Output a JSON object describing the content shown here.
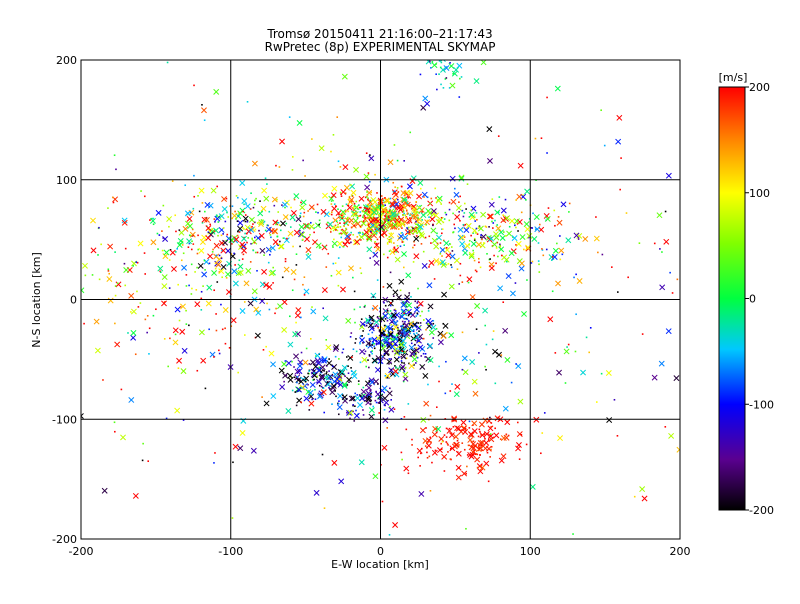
{
  "chart_data": {
    "type": "scatter",
    "title": "Tromsø 20150411 21:16:00–21:17:43",
    "subtitle": "RwPretec (8p) EXPERIMENTAL SKYMAP",
    "xlabel": "E-W location [km]",
    "ylabel": "N-S location [km]",
    "xlim": [
      -200,
      200
    ],
    "ylim": [
      -200,
      200
    ],
    "x_ticks": [
      "-200",
      "-100",
      "0",
      "100",
      "200"
    ],
    "y_ticks": [
      "-200",
      "-100",
      "0",
      "100",
      "200"
    ],
    "grid": true,
    "colorbar": {
      "label": "[m/s]",
      "range": [
        -200,
        200
      ],
      "ticks": [
        "-200",
        "-100",
        "0",
        "100",
        "200"
      ]
    },
    "markers": {
      "small": "dot",
      "large": "x"
    },
    "clusters": [
      {
        "x": 0,
        "y": 70,
        "sx": 20,
        "sy": 13,
        "n": 520,
        "v": 120,
        "vs": 110
      },
      {
        "x": -90,
        "y": 55,
        "sx": 32,
        "sy": 17,
        "n": 300,
        "v": 40,
        "vs": 140
      },
      {
        "x": 70,
        "y": 55,
        "sx": 30,
        "sy": 16,
        "n": 240,
        "v": 60,
        "vs": 130
      },
      {
        "x": 10,
        "y": -30,
        "sx": 13,
        "sy": 16,
        "n": 420,
        "v": -120,
        "vs": 90
      },
      {
        "x": -40,
        "y": -65,
        "sx": 12,
        "sy": 10,
        "n": 180,
        "v": -120,
        "vs": 100
      },
      {
        "x": -10,
        "y": -85,
        "sx": 10,
        "sy": 8,
        "n": 80,
        "v": -150,
        "vs": 60
      },
      {
        "x": 60,
        "y": -120,
        "sx": 18,
        "sy": 12,
        "n": 170,
        "v": 195,
        "vs": 15
      },
      {
        "x": -130,
        "y": 10,
        "sx": 45,
        "sy": 40,
        "n": 180,
        "v": 100,
        "vs": 140
      },
      {
        "x": 0,
        "y": 0,
        "sx": 110,
        "sy": 90,
        "n": 480,
        "v": 40,
        "vs": 160
      },
      {
        "x": 45,
        "y": 195,
        "sx": 8,
        "sy": 5,
        "n": 25,
        "v": -40,
        "vs": 40
      },
      {
        "x": 40,
        "y": 175,
        "sx": 8,
        "sy": 10,
        "n": 15,
        "v": -60,
        "vs": 50
      }
    ],
    "total_points": 2610
  }
}
